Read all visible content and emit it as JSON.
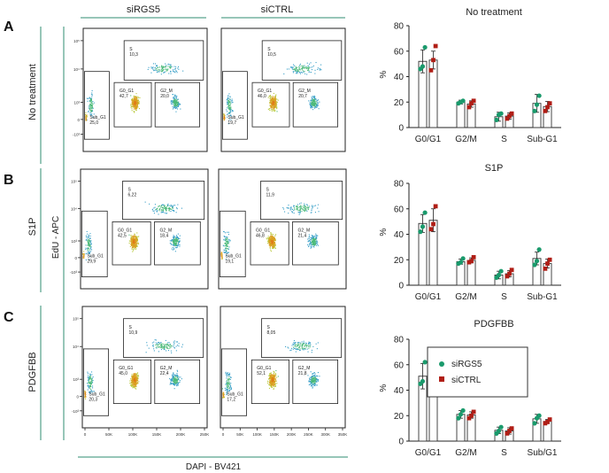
{
  "figure": {
    "columns": [
      "siRGS5",
      "siCTRL"
    ],
    "panel_letters": [
      "A",
      "B",
      "C"
    ],
    "row_labels": [
      "No treatment",
      "S1P",
      "PDGFBB"
    ],
    "y_axis_label": "EdU - APC",
    "x_axis_label": "DAPI - BV421",
    "flow_y_ticks": [
      "10⁵",
      "10⁴",
      "10³",
      "0",
      "-10³"
    ],
    "flow_x_ticks": [
      "0",
      "50K",
      "100K",
      "150K",
      "200K",
      "250K"
    ],
    "flow_x_ticks_right": [
      "0",
      "50K",
      "100K",
      "150K",
      "200K",
      "250K",
      "300K",
      "350K"
    ],
    "gate_names": {
      "s": "S",
      "g0g1": "G0_G1",
      "g2m": "G2_M",
      "subg1": "Sub_G1"
    },
    "gates": [
      [
        {
          "s": "10,3",
          "g0g1": "42,7",
          "g2m": "20,0",
          "subg1": "25,0"
        },
        {
          "s": "10,5",
          "g0g1": "46,0",
          "g2m": "20,7",
          "subg1": "19,7"
        }
      ],
      [
        {
          "s": "6,22",
          "g0g1": "42,5",
          "g2m": "18,4",
          "subg1": "29,9"
        },
        {
          "s": "11,9",
          "g0g1": "46,8",
          "g2m": "21,4",
          "subg1": "19,1"
        }
      ],
      [
        {
          "s": "10,9",
          "g0g1": "45,0",
          "g2m": "22,4",
          "subg1": "20,3"
        },
        {
          "s": "8,05",
          "g0g1": "52,1",
          "g2m": "21,8",
          "subg1": "17,2"
        }
      ]
    ],
    "legend": [
      {
        "name": "siRGS5",
        "color": "#1a9a6c"
      },
      {
        "name": "siCTRL",
        "color": "#b01e16"
      }
    ]
  },
  "chart_data": [
    {
      "type": "bar",
      "title": "No treatment",
      "ylabel": "%",
      "ylim": [
        0,
        80
      ],
      "yticks": [
        "0",
        "20",
        "40",
        "60",
        "80"
      ],
      "categories": [
        "G0/G1",
        "G2/M",
        "S",
        "Sub-G1"
      ],
      "series": [
        {
          "name": "siRGS5",
          "values": [
            52,
            20,
            8.5,
            19
          ],
          "errors": [
            9,
            1.5,
            3.5,
            7
          ],
          "points": [
            [
              46,
              48,
              63
            ],
            [
              19,
              20,
              21
            ],
            [
              6,
              10,
              11
            ],
            [
              13,
              18,
              25
            ]
          ]
        },
        {
          "name": "siCTRL",
          "values": [
            53,
            18.5,
            9,
            16.5
          ],
          "errors": [
            7,
            2.5,
            2.5,
            4
          ],
          "points": [
            [
              45,
              53,
              64
            ],
            [
              16,
              19,
              21
            ],
            [
              7,
              9,
              11
            ],
            [
              13,
              16,
              19
            ]
          ]
        }
      ]
    },
    {
      "type": "bar",
      "title": "S1P",
      "ylabel": "%",
      "ylim": [
        0,
        80
      ],
      "yticks": [
        "0",
        "20",
        "40",
        "60",
        "80"
      ],
      "categories": [
        "G0/G1",
        "G2/M",
        "S",
        "Sub-G1"
      ],
      "series": [
        {
          "name": "siRGS5",
          "values": [
            48.5,
            18.5,
            8,
            21
          ],
          "errors": [
            7,
            2,
            3,
            5
          ],
          "points": [
            [
              42,
              46,
              57
            ],
            [
              17,
              18,
              21
            ],
            [
              6,
              8,
              11
            ],
            [
              16,
              19,
              28
            ]
          ]
        },
        {
          "name": "siCTRL",
          "values": [
            51,
            19.5,
            9,
            17
          ],
          "errors": [
            9,
            2,
            2.5,
            3.5
          ],
          "points": [
            [
              44,
              48,
              62
            ],
            [
              18,
              19,
              22
            ],
            [
              7,
              9,
              12
            ],
            [
              13,
              17,
              20
            ]
          ]
        }
      ]
    },
    {
      "type": "bar",
      "title": "PDGFBB",
      "ylabel": "%",
      "ylim": [
        0,
        80
      ],
      "yticks": [
        "0",
        "20",
        "40",
        "60",
        "80"
      ],
      "categories": [
        "G0/G1",
        "G2/M",
        "S",
        "Sub/G1"
      ],
      "series": [
        {
          "name": "siRGS5",
          "values": [
            51,
            21,
            8.5,
            17.5
          ],
          "errors": [
            10,
            3,
            2.5,
            3.5
          ],
          "points": [
            [
              45,
              47,
              62
            ],
            [
              18,
              21,
              24
            ],
            [
              6,
              8,
              11
            ],
            [
              14,
              18,
              20
            ]
          ]
        },
        {
          "name": "siCTRL",
          "values": [
            54,
            20.5,
            8,
            15.5
          ],
          "errors": [
            9,
            2.5,
            2.5,
            1.5
          ],
          "points": [
            [
              46,
              54,
              64
            ],
            [
              18,
              20,
              23
            ],
            [
              6,
              8,
              10
            ],
            [
              14,
              15,
              17
            ]
          ]
        }
      ]
    }
  ]
}
